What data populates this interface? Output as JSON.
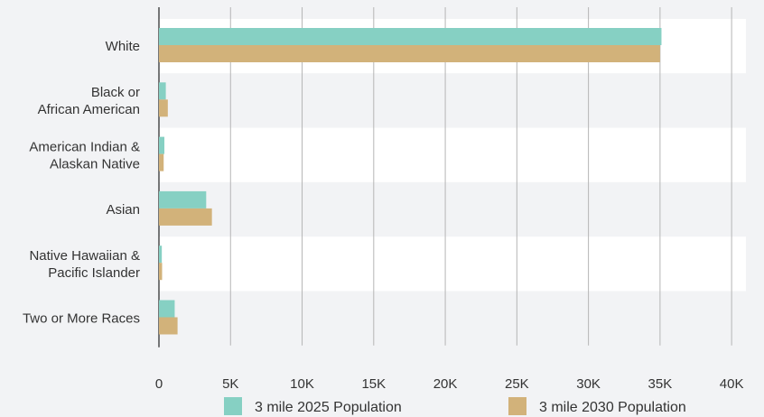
{
  "chart_data": {
    "type": "bar",
    "orientation": "horizontal",
    "categories": [
      [
        "White"
      ],
      [
        "Black or",
        "African American"
      ],
      [
        "American Indian &",
        "Alaskan Native"
      ],
      [
        "Asian"
      ],
      [
        "Native Hawaiian &",
        "Pacific Islander"
      ],
      [
        "Two or More Races"
      ]
    ],
    "series": [
      {
        "name": "3 mile 2025 Population",
        "color": "#86d0c3",
        "values": [
          35100,
          480,
          380,
          3300,
          200,
          1100
        ]
      },
      {
        "name": "3 mile 2030 Population",
        "color": "#d2b27a",
        "values": [
          35000,
          620,
          330,
          3700,
          220,
          1300
        ]
      }
    ],
    "xlim": [
      0,
      41000
    ],
    "xticks": [
      0,
      5000,
      10000,
      15000,
      20000,
      25000,
      30000,
      35000,
      40000
    ],
    "xtick_labels": [
      "0",
      "5K",
      "10K",
      "15K",
      "20K",
      "25K",
      "30K",
      "35K",
      "40K"
    ],
    "grid": true,
    "band_colors": [
      "#ffffff",
      "#f2f3f5"
    ],
    "legend_position": "bottom"
  }
}
